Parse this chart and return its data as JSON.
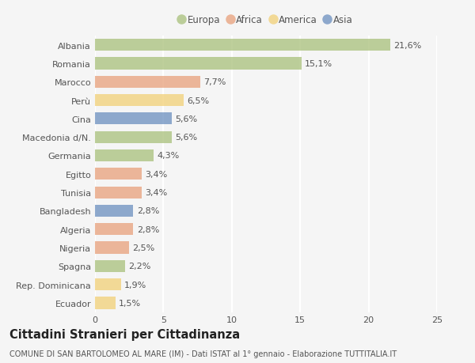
{
  "categories": [
    "Albania",
    "Romania",
    "Marocco",
    "Perù",
    "Cina",
    "Macedonia d/N.",
    "Germania",
    "Egitto",
    "Tunisia",
    "Bangladesh",
    "Algeria",
    "Nigeria",
    "Spagna",
    "Rep. Dominicana",
    "Ecuador"
  ],
  "values": [
    21.6,
    15.1,
    7.7,
    6.5,
    5.6,
    5.6,
    4.3,
    3.4,
    3.4,
    2.8,
    2.8,
    2.5,
    2.2,
    1.9,
    1.5
  ],
  "labels": [
    "21,6%",
    "15,1%",
    "7,7%",
    "6,5%",
    "5,6%",
    "5,6%",
    "4,3%",
    "3,4%",
    "3,4%",
    "2,8%",
    "2,8%",
    "2,5%",
    "2,2%",
    "1,9%",
    "1,5%"
  ],
  "continents": [
    "Europa",
    "Europa",
    "Africa",
    "America",
    "Asia",
    "Europa",
    "Europa",
    "Africa",
    "Africa",
    "Asia",
    "Africa",
    "Africa",
    "Europa",
    "America",
    "America"
  ],
  "colors": {
    "Europa": "#a8c07a",
    "Africa": "#e8a07a",
    "America": "#f2d076",
    "Asia": "#6b8fbf"
  },
  "xlim": [
    0,
    25
  ],
  "xticks": [
    0,
    5,
    10,
    15,
    20,
    25
  ],
  "legend_order": [
    "Europa",
    "Africa",
    "America",
    "Asia"
  ],
  "title": "Cittadini Stranieri per Cittadinanza",
  "subtitle": "COMUNE DI SAN BARTOLOMEO AL MARE (IM) - Dati ISTAT al 1° gennaio - Elaborazione TUTTITALIA.IT",
  "background_color": "#f5f5f5",
  "bar_height": 0.65,
  "bar_alpha": 0.75,
  "label_fontsize": 8,
  "ytick_fontsize": 8,
  "xtick_fontsize": 8,
  "legend_fontsize": 8.5,
  "title_fontsize": 10.5,
  "subtitle_fontsize": 7,
  "grid_color": "#ffffff",
  "grid_linewidth": 1.5,
  "text_color": "#555555",
  "title_color": "#222222"
}
